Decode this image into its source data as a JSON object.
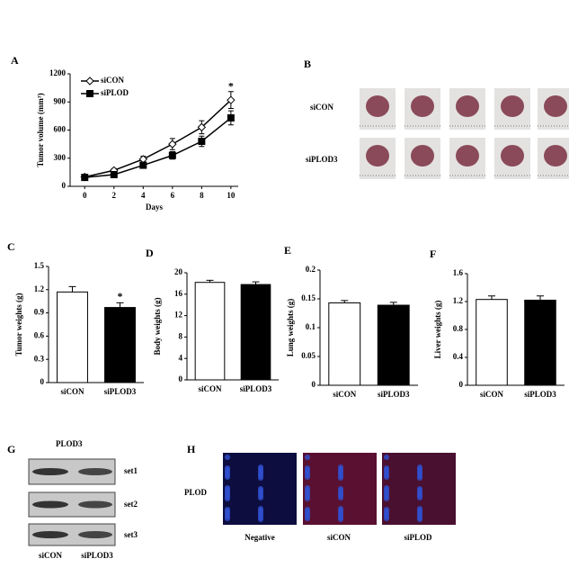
{
  "chart_data": [
    {
      "type": "line",
      "panel": "A",
      "y_label": "Tumor volume (mm³)",
      "x_label": "Days",
      "x": [
        0,
        2,
        4,
        6,
        8,
        10
      ],
      "xlim": [
        -1,
        10.5
      ],
      "xticks": [
        0,
        2,
        4,
        6,
        8,
        10
      ],
      "ylim": [
        0,
        1200
      ],
      "yticks": [
        0,
        300,
        600,
        900,
        1200
      ],
      "legend": "top-left",
      "series": [
        {
          "name": "siCON",
          "color": "#ffffff",
          "marker": "diamond",
          "values": [
            100,
            170,
            290,
            450,
            630,
            920
          ],
          "errors": [
            10,
            20,
            30,
            60,
            70,
            90
          ]
        },
        {
          "name": "siPLOD",
          "color": "#000000",
          "marker": "square",
          "values": [
            95,
            125,
            225,
            330,
            480,
            730
          ],
          "errors": [
            10,
            15,
            25,
            40,
            55,
            75
          ]
        }
      ],
      "annotations": [
        {
          "text": "*",
          "x": 10,
          "y": 1060
        }
      ]
    },
    {
      "type": "bar",
      "panel": "C",
      "y_label": "Tumor weights (g)",
      "categories": [
        "siCON",
        "siPLOD3"
      ],
      "values": [
        1.17,
        0.97
      ],
      "errors": [
        0.07,
        0.06
      ],
      "colors": [
        "#ffffff",
        "#000000"
      ],
      "ylim": [
        0,
        1.5
      ],
      "yticks": [
        0,
        0.3,
        0.6,
        0.9,
        1.2,
        1.5
      ],
      "annotations": [
        {
          "text": "*",
          "x": "siPLOD3",
          "y": 1.1
        }
      ]
    },
    {
      "type": "bar",
      "panel": "D",
      "y_label": "Body weights (g)",
      "categories": [
        "siCON",
        "siPLOD3"
      ],
      "values": [
        18.2,
        17.8
      ],
      "errors": [
        0.4,
        0.5
      ],
      "colors": [
        "#ffffff",
        "#000000"
      ],
      "ylim": [
        0,
        20
      ],
      "yticks": [
        0,
        4,
        8,
        12,
        16,
        20
      ]
    },
    {
      "type": "bar",
      "panel": "E",
      "y_label": "Lung weights (g)",
      "categories": [
        "siCON",
        "siPLOD3"
      ],
      "values": [
        0.143,
        0.139
      ],
      "errors": [
        0.004,
        0.005
      ],
      "colors": [
        "#ffffff",
        "#000000"
      ],
      "ylim": [
        0,
        0.2
      ],
      "yticks": [
        0,
        0.05,
        0.1,
        0.15,
        0.2
      ]
    },
    {
      "type": "bar",
      "panel": "F",
      "y_label": "Liver weights (g)",
      "categories": [
        "siCON",
        "siPLOD3"
      ],
      "values": [
        1.23,
        1.22
      ],
      "errors": [
        0.05,
        0.06
      ],
      "colors": [
        "#ffffff",
        "#000000"
      ],
      "ylim": [
        0,
        1.6
      ],
      "yticks": [
        0,
        0.4,
        0.8,
        1.2,
        1.6
      ]
    }
  ],
  "photos": {
    "panel": "B",
    "rows": [
      "siCON",
      "siPLOD3"
    ]
  },
  "blot": {
    "panel": "G",
    "title": "PLOD3",
    "sets": [
      "set1",
      "set2",
      "set3"
    ],
    "lanes": [
      "siCON",
      "siPLOD3"
    ]
  },
  "staining": {
    "panel": "H",
    "row": "PLOD",
    "columns": [
      "Negative",
      "siCON",
      "siPLOD"
    ]
  }
}
